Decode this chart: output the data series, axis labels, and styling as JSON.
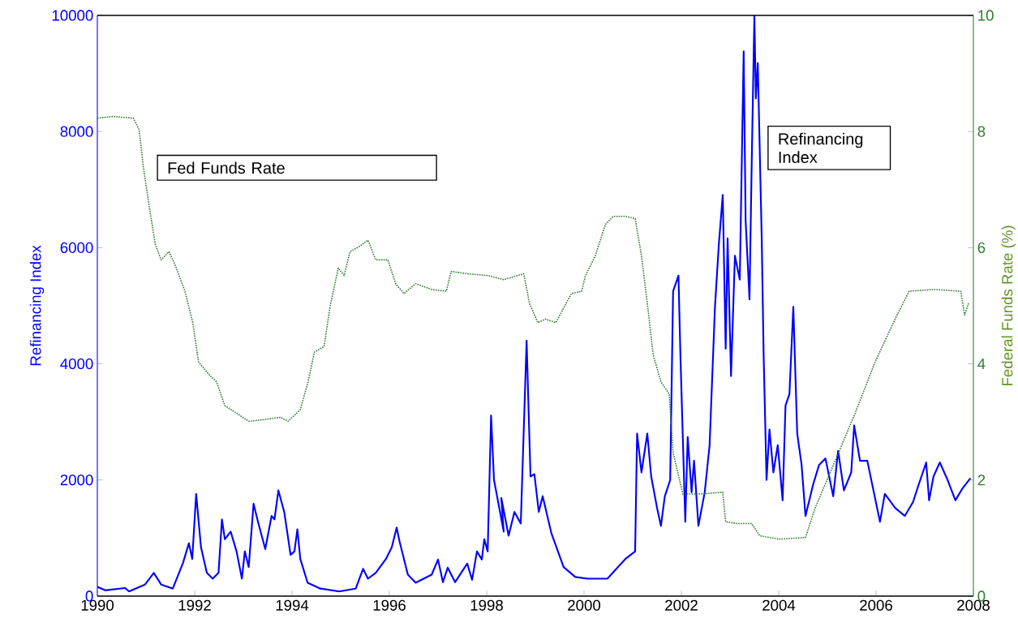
{
  "chart_data": {
    "type": "line",
    "ylabel": "Refinancing Index",
    "y2label": "Federal Funds Rate (%)",
    "xlim": [
      1990,
      2008
    ],
    "xticks": [
      1990,
      1992,
      1994,
      1996,
      1998,
      2000,
      2002,
      2004,
      2006,
      2008
    ],
    "ylim": [
      0,
      10000
    ],
    "yticks": [
      0,
      2000,
      4000,
      6000,
      8000,
      10000
    ],
    "y2lim": [
      0,
      10
    ],
    "y2ticks": [
      0,
      2,
      4,
      6,
      8,
      10
    ],
    "series": [
      {
        "name": "Refinancing Index",
        "color": "#0000ff",
        "line_style": "solid",
        "x": [
          1990.0,
          1990.16,
          1990.57,
          1990.65,
          1990.98,
          1991.16,
          1991.31,
          1991.55,
          1991.76,
          1991.88,
          1991.95,
          1992.03,
          1992.13,
          1992.25,
          1992.37,
          1992.49,
          1992.56,
          1992.62,
          1992.74,
          1992.86,
          1992.97,
          1993.03,
          1993.11,
          1993.21,
          1993.31,
          1993.45,
          1993.58,
          1993.64,
          1993.72,
          1993.84,
          1993.97,
          1994.05,
          1994.11,
          1994.17,
          1994.32,
          1994.58,
          1994.97,
          1995.31,
          1995.46,
          1995.56,
          1995.72,
          1995.93,
          1996.05,
          1996.15,
          1996.21,
          1996.38,
          1996.54,
          1996.87,
          1997.0,
          1997.1,
          1997.2,
          1997.35,
          1997.6,
          1997.7,
          1997.8,
          1997.9,
          1997.95,
          1998.02,
          1998.09,
          1998.15,
          1998.35,
          1998.3,
          1998.45,
          1998.57,
          1998.7,
          1998.82,
          1998.9,
          1998.98,
          1999.07,
          1999.15,
          1999.33,
          1999.58,
          1999.82,
          2000.07,
          2000.48,
          2000.85,
          2001.05,
          2001.09,
          2001.18,
          2001.3,
          2001.38,
          2001.5,
          2001.58,
          2001.66,
          2001.77,
          2001.83,
          2001.94,
          2001.98,
          2002.08,
          2002.13,
          2002.21,
          2002.26,
          2002.35,
          2002.48,
          2002.58,
          2002.69,
          2002.77,
          2002.85,
          2002.91,
          2002.95,
          2003.02,
          2003.1,
          2003.2,
          2003.28,
          2003.32,
          2003.4,
          2003.44,
          2003.5,
          2003.53,
          2003.57,
          2003.65,
          2003.69,
          2003.75,
          2003.81,
          2003.89,
          2003.98,
          2004.08,
          2004.14,
          2004.22,
          2004.3,
          2004.38,
          2004.47,
          2004.55,
          2004.71,
          2004.83,
          2004.96,
          2005.12,
          2005.22,
          2005.34,
          2005.49,
          2005.55,
          2005.67,
          2005.82,
          2006.08,
          2006.18,
          2006.39,
          2006.59,
          2006.76,
          2006.88,
          2007.03,
          2007.09,
          2007.18,
          2007.31,
          2007.47,
          2007.63,
          2007.78,
          2007.94
        ],
        "values": [
          160,
          100,
          140,
          80,
          200,
          400,
          200,
          130,
          570,
          910,
          640,
          1760,
          840,
          400,
          300,
          400,
          1320,
          980,
          1110,
          770,
          300,
          770,
          500,
          1590,
          1250,
          810,
          1380,
          1320,
          1820,
          1450,
          710,
          770,
          1150,
          640,
          230,
          130,
          80,
          130,
          470,
          300,
          400,
          640,
          840,
          1180,
          940,
          370,
          230,
          370,
          630,
          240,
          490,
          240,
          560,
          280,
          770,
          630,
          980,
          770,
          3110,
          2000,
          1110,
          1690,
          1040,
          1450,
          1250,
          4400,
          2060,
          2100,
          1450,
          1720,
          1080,
          500,
          330,
          300,
          300,
          640,
          770,
          2800,
          2130,
          2800,
          2060,
          1520,
          1210,
          1720,
          2000,
          5250,
          5520,
          4160,
          1280,
          2740,
          1790,
          2330,
          1210,
          1790,
          2600,
          4980,
          6060,
          6910,
          4260,
          6160,
          3790,
          5860,
          5450,
          9380,
          6470,
          5110,
          7210,
          10000,
          8570,
          9180,
          6200,
          4160,
          2000,
          2870,
          2130,
          2600,
          1650,
          3280,
          3480,
          4980,
          2800,
          2260,
          1380,
          1930,
          2260,
          2370,
          1720,
          2500,
          1820,
          2130,
          2940,
          2330,
          2330,
          1280,
          1760,
          1520,
          1380,
          1620,
          1930,
          2300,
          1650,
          2060,
          2300,
          2000,
          1650,
          1860,
          2030
        ]
      },
      {
        "name": "Fed Funds Rate",
        "color": "#2e7d2e",
        "line_style": "dotted",
        "axis": "y2",
        "x": [
          1990.0,
          1990.33,
          1990.74,
          1990.86,
          1990.94,
          1991.06,
          1991.19,
          1991.31,
          1991.47,
          1991.59,
          1991.8,
          1991.96,
          1992.08,
          1992.29,
          1992.45,
          1992.62,
          1992.86,
          1993.11,
          1993.43,
          1993.76,
          1993.92,
          1994.17,
          1994.33,
          1994.46,
          1994.66,
          1994.78,
          1994.95,
          1995.07,
          1995.19,
          1995.4,
          1995.56,
          1995.72,
          1995.97,
          1996.13,
          1996.3,
          1996.54,
          1996.87,
          1997.17,
          1997.27,
          1997.62,
          1998.02,
          1998.35,
          1998.76,
          1998.88,
          1999.05,
          1999.21,
          1999.42,
          1999.74,
          1999.95,
          2000.03,
          2000.23,
          2000.44,
          2000.6,
          2000.85,
          2001.05,
          2001.18,
          2001.3,
          2001.42,
          2001.58,
          2001.75,
          2001.83,
          2002.03,
          2002.44,
          2002.85,
          2002.91,
          2003.14,
          2003.44,
          2003.61,
          2004.02,
          2004.55,
          2004.75,
          2005.16,
          2005.57,
          2005.98,
          2006.39,
          2006.68,
          2007.21,
          2007.74,
          2007.82,
          2007.9
        ],
        "values": [
          8.23,
          8.26,
          8.23,
          8.03,
          7.42,
          6.74,
          6.06,
          5.79,
          5.93,
          5.72,
          5.25,
          4.71,
          4.03,
          3.82,
          3.69,
          3.28,
          3.15,
          3.01,
          3.04,
          3.08,
          3.01,
          3.21,
          3.69,
          4.2,
          4.3,
          4.98,
          5.65,
          5.52,
          5.93,
          6.03,
          6.13,
          5.79,
          5.79,
          5.38,
          5.21,
          5.38,
          5.28,
          5.25,
          5.59,
          5.55,
          5.52,
          5.45,
          5.55,
          5.04,
          4.71,
          4.77,
          4.71,
          5.21,
          5.25,
          5.52,
          5.86,
          6.4,
          6.54,
          6.54,
          6.5,
          5.86,
          5.04,
          4.16,
          3.69,
          3.48,
          2.47,
          1.76,
          1.76,
          1.79,
          1.28,
          1.25,
          1.25,
          1.04,
          0.98,
          1.01,
          1.52,
          2.33,
          3.15,
          4.03,
          4.77,
          5.25,
          5.28,
          5.25,
          4.84,
          5.04
        ]
      }
    ]
  }
}
